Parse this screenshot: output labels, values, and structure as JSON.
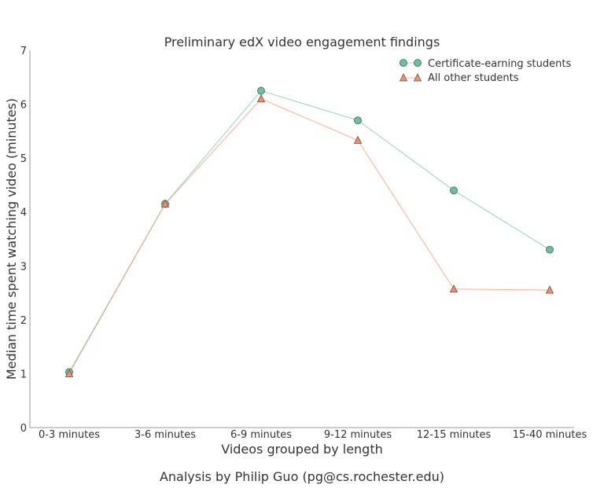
{
  "chart_data": {
    "type": "line",
    "title": "Preliminary edX video engagement findings",
    "xlabel": "Videos grouped by length",
    "ylabel": "Median time spent watching video (minutes)",
    "categories": [
      "0-3 minutes",
      "3-6 minutes",
      "6-9 minutes",
      "9-12 minutes",
      "12-15 minutes",
      "15-40 minutes"
    ],
    "series": [
      {
        "name": "Certificate-earning students",
        "marker": "circle",
        "color": "#66c2a5",
        "values": [
          1.03,
          4.15,
          6.25,
          5.7,
          4.4,
          3.3
        ]
      },
      {
        "name": "All other students",
        "marker": "triangle",
        "color": "#fc8d62",
        "values": [
          1.0,
          4.15,
          6.1,
          5.33,
          2.57,
          2.55
        ]
      }
    ],
    "ylim": [
      0,
      7
    ],
    "yticks": [
      0,
      1,
      2,
      3,
      4,
      5,
      6,
      7
    ],
    "grid": false,
    "legend_position": "upper right"
  },
  "credit": "Analysis by Philip Guo (pg@cs.rochester.edu)"
}
